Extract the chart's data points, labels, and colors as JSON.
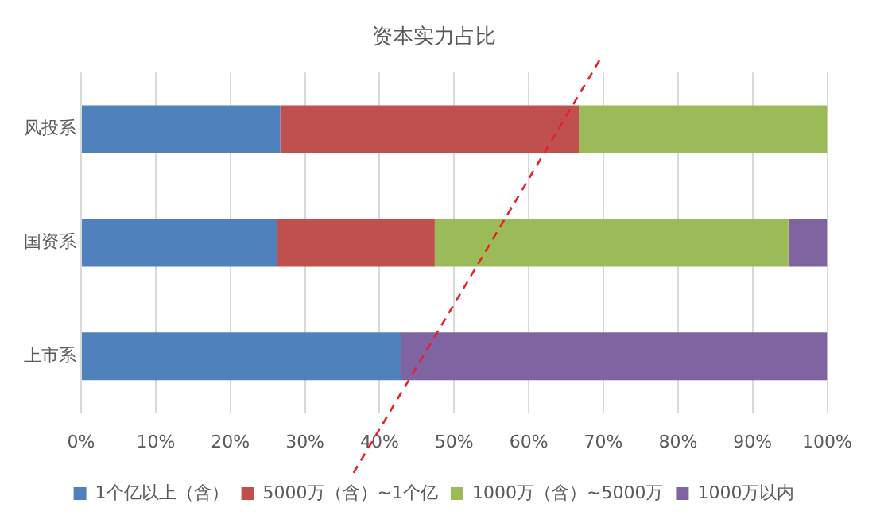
{
  "chart_data": {
    "type": "bar",
    "orientation": "horizontal",
    "stacked": true,
    "title": "资本实力占比",
    "categories": [
      "风投系",
      "国资系",
      "上市系"
    ],
    "series": [
      {
        "name": "1个亿以上（含）",
        "color": "#4f81bd",
        "values": [
          26.7,
          26.3,
          42.9
        ]
      },
      {
        "name": "5000万（含）~1个亿",
        "color": "#c0504d",
        "values": [
          40.0,
          21.1,
          null
        ]
      },
      {
        "name": "1000万（含）~5000万",
        "color": "#9bbb59",
        "values": [
          33.3,
          47.4,
          null
        ]
      },
      {
        "name": "1000万以内",
        "color": "#8064a2",
        "values": [
          null,
          5.2,
          57.1
        ]
      }
    ],
    "xlim": [
      0,
      100
    ],
    "xticks": [
      {
        "value": 0,
        "label": "0%"
      },
      {
        "value": 10,
        "label": "10%"
      },
      {
        "value": 20,
        "label": "20%"
      },
      {
        "value": 30,
        "label": "30%"
      },
      {
        "value": 40,
        "label": "40%"
      },
      {
        "value": 50,
        "label": "50%"
      },
      {
        "value": 60,
        "label": "60%"
      },
      {
        "value": 70,
        "label": "70%"
      },
      {
        "value": 80,
        "label": "80%"
      },
      {
        "value": 90,
        "label": "90%"
      },
      {
        "value": 100,
        "label": "100%"
      }
    ],
    "grid": "x",
    "legend": "bottom"
  }
}
